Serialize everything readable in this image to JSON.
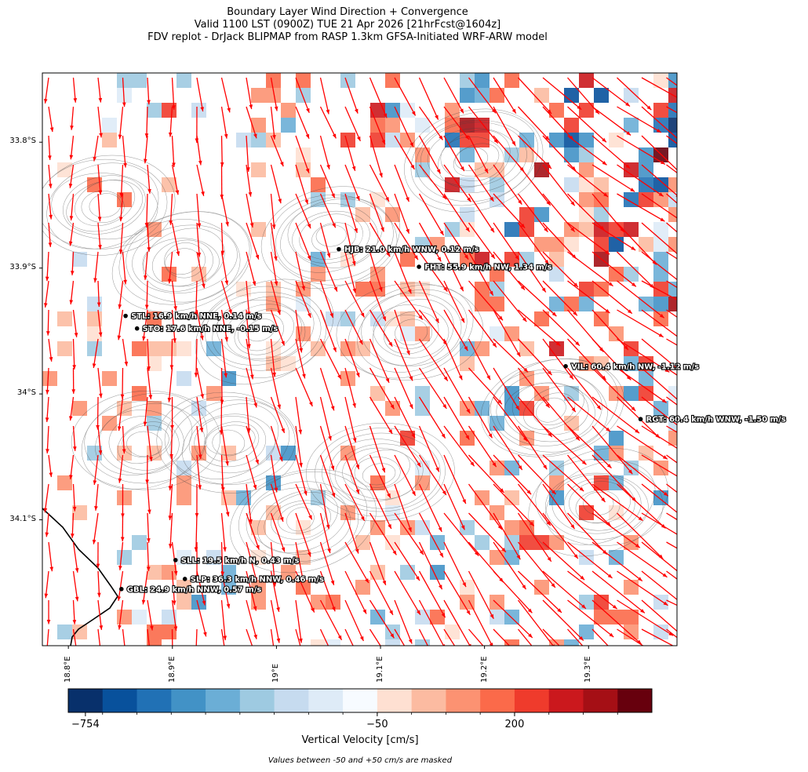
{
  "titles": {
    "line1": "Boundary Layer Wind Direction + Convergence",
    "line2": "Valid 1100 LST (0900Z) TUE 21 Apr 2026 [21hrFcst@1604z]",
    "line3": "FDV replot - DrJack BLIPMAP from RASP 1.3km GFSA-Initiated WRF-ARW model"
  },
  "chart_data": {
    "type": "heatmap",
    "x_axis": {
      "range": [
        18.775,
        19.385
      ],
      "ticks": [
        18.8,
        18.9,
        19.0,
        19.1,
        19.2,
        19.3
      ],
      "tick_labels": [
        "18.8°E",
        "18.9°E",
        "19°E",
        "19.1°E",
        "19.2°E",
        "19.3°E"
      ]
    },
    "y_axis": {
      "range": [
        -34.2,
        -33.745
      ],
      "ticks": [
        -33.8,
        -33.9,
        -34.0,
        -34.1
      ],
      "tick_labels": [
        "33.8°S",
        "33.9°S",
        "34°S",
        "34.1°S"
      ]
    },
    "stations": [
      {
        "name": "HJB",
        "lon": 19.06,
        "lat": -33.885,
        "label": "HJB: 21.0 km/h WNW, 0.12 m/s"
      },
      {
        "name": "FHT",
        "lon": 19.137,
        "lat": -33.899,
        "label": "FHT: 55.9 km/h NW, 1.34 m/s"
      },
      {
        "name": "STL",
        "lon": 18.855,
        "lat": -33.938,
        "label": "STL: 16.9 km/h NNE, 0.14 m/s"
      },
      {
        "name": "STO",
        "lon": 18.866,
        "lat": -33.948,
        "label": "STO: 17.6 km/h NNE, -0.15 m/s"
      },
      {
        "name": "VIL",
        "lon": 19.278,
        "lat": -33.978,
        "label": "VIL: 60.4 km/h NW, -1.12 m/s"
      },
      {
        "name": "RGT",
        "lon": 19.35,
        "lat": -34.02,
        "label": "RGT: 60.4 km/h WNW, -1.50 m/s"
      },
      {
        "name": "SLL",
        "lon": 18.903,
        "lat": -34.132,
        "label": "SLL: 19.5 km/h N, 0.43 m/s"
      },
      {
        "name": "SLP",
        "lon": 18.912,
        "lat": -34.147,
        "label": "SLP: 36.3 km/h NNW, 0.46 m/s"
      },
      {
        "name": "GBL",
        "lon": 18.851,
        "lat": -34.155,
        "label": "GBL: 24.9 km/h NNW, 0.57 m/s"
      }
    ],
    "colorbar": {
      "label": "Vertical Velocity [cm/s]",
      "tick_labels": [
        "−754",
        "−50",
        "200"
      ],
      "colors": [
        "#08306b",
        "#08519c",
        "#2171b5",
        "#4292c6",
        "#6baed6",
        "#9ecae1",
        "#c6dbef",
        "#deebf7",
        "#f7fbff",
        "#fee0d2",
        "#fcbba1",
        "#fc9272",
        "#fb6a4a",
        "#ef3b2c",
        "#cb181d",
        "#a50f15",
        "#67000d"
      ]
    },
    "footnote": "Values between -50 and +50 cm/s are masked",
    "vector_color": "#ff0000"
  }
}
